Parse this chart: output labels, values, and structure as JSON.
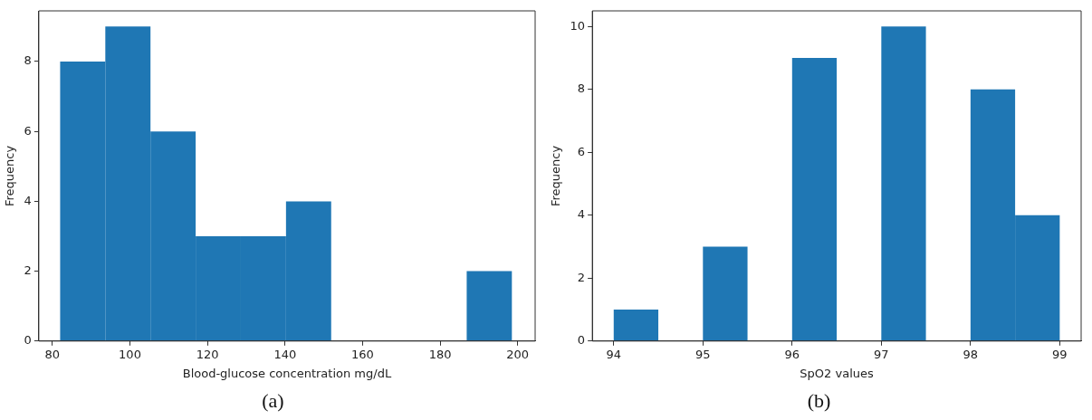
{
  "chart_data": [
    {
      "type": "histogram",
      "xlabel": "Blood-glucose concentration mg/dL",
      "ylabel": "Frequency",
      "color": "#1f77b4",
      "bins": [
        82,
        93.65,
        105.3,
        116.95,
        128.6,
        140.25,
        151.9,
        163.55,
        175.2,
        186.85,
        198.5
      ],
      "values": [
        8,
        9,
        6,
        3,
        3,
        4,
        0,
        0,
        0,
        2
      ],
      "xlim": [
        76.5,
        204.5
      ],
      "xticks": [
        80,
        100,
        120,
        140,
        160,
        180,
        200
      ],
      "ylim": [
        0,
        9.45
      ],
      "yticks": [
        0,
        2,
        4,
        6,
        8
      ],
      "grid": false,
      "annotations": [
        "(a)"
      ]
    },
    {
      "type": "histogram",
      "xlabel": "SpO2 values",
      "ylabel": "Frequency",
      "color": "#1f77b4",
      "bins": [
        94,
        94.5,
        95,
        95.5,
        96,
        96.5,
        97,
        97.5,
        98,
        98.5,
        99
      ],
      "values": [
        1,
        0,
        3,
        0,
        9,
        0,
        10,
        0,
        8,
        4
      ],
      "xlim": [
        93.76,
        99.24
      ],
      "xticks": [
        94,
        95,
        96,
        97,
        98,
        99
      ],
      "ylim": [
        0,
        10.5
      ],
      "yticks": [
        0,
        2,
        4,
        6,
        8,
        10
      ],
      "grid": false,
      "annotations": [
        "(b)"
      ]
    }
  ]
}
